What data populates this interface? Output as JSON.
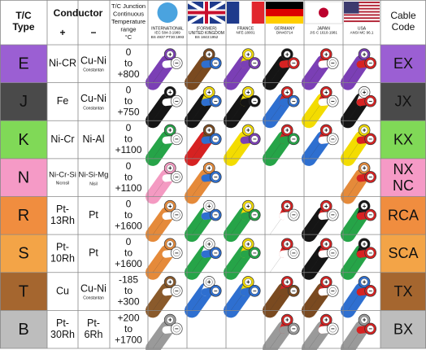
{
  "header": {
    "type_label": [
      "T/C",
      "Type"
    ],
    "conductor": "Conductor",
    "plus": "+",
    "minus": "−",
    "temp": [
      "T/C Junction",
      "Continuous",
      "Temperature",
      "range",
      "°C"
    ],
    "cable_code": [
      "Cable",
      "Code"
    ],
    "standards": [
      {
        "name": [
          "INTERNATIONAL"
        ],
        "spec": [
          "IEC 584-3:1989",
          "BS 4937 PT30:1993"
        ]
      },
      {
        "name": [
          "(FORMER)",
          "UNITED KINGDOM"
        ],
        "spec": [
          "BS 1843:1952"
        ]
      },
      {
        "name": [
          "FRANCE"
        ],
        "spec": [
          "NFE-18001"
        ]
      },
      {
        "name": [
          "GERMANY"
        ],
        "spec": [
          "DIN43714"
        ]
      },
      {
        "name": [
          "JAPAN"
        ],
        "spec": [
          "JIS C 1610-1981"
        ]
      },
      {
        "name": [
          "USA"
        ],
        "spec": [
          "ANSI MC 96.1"
        ]
      }
    ]
  },
  "rows": [
    {
      "type": "E",
      "plus": [
        "Ni-CR"
      ],
      "minus": [
        "Cu-Ni"
      ],
      "minus_note": "Constantan",
      "temp": [
        "0",
        "to",
        "+800"
      ],
      "code": [
        "EX"
      ]
    },
    {
      "type": "J",
      "plus": [
        "Fe"
      ],
      "minus": [
        "Cu-Ni"
      ],
      "minus_note": "Constantan",
      "temp": [
        "0",
        "to",
        "+750"
      ],
      "code": [
        "JX"
      ]
    },
    {
      "type": "K",
      "plus": [
        "Ni-Cr"
      ],
      "minus": [
        "Ni-Al"
      ],
      "temp": [
        "0",
        "to",
        "+1100"
      ],
      "code": [
        "KX"
      ]
    },
    {
      "type": "N",
      "plus": [
        "Ni-Cr-Si"
      ],
      "plus_note": "Nicrosil",
      "minus": [
        "Ni-Si-Mg"
      ],
      "minus_note": "Nisil",
      "temp": [
        "0",
        "to",
        "+1100"
      ],
      "code": [
        "NX",
        "NC"
      ]
    },
    {
      "type": "R",
      "plus": [
        "Pt-",
        "13Rh"
      ],
      "minus": [
        "Pt"
      ],
      "temp": [
        "0",
        "to",
        "+1600"
      ],
      "code": [
        "RCA"
      ]
    },
    {
      "type": "S",
      "plus": [
        "Pt-",
        "10Rh"
      ],
      "minus": [
        "Pt"
      ],
      "temp": [
        "0",
        "to",
        "+1600"
      ],
      "code": [
        "SCA"
      ]
    },
    {
      "type": "T",
      "plus": [
        "Cu"
      ],
      "minus": [
        "Cu-Ni"
      ],
      "minus_note": "Constantan",
      "temp": [
        "-185",
        "to",
        "+300"
      ],
      "code": [
        "TX"
      ]
    },
    {
      "type": "B",
      "plus": [
        "Pt-",
        "30Rh"
      ],
      "minus": [
        "Pt-",
        "6Rh"
      ],
      "temp": [
        "+200",
        "to",
        "+1700"
      ],
      "code": [
        "BX"
      ]
    }
  ]
}
